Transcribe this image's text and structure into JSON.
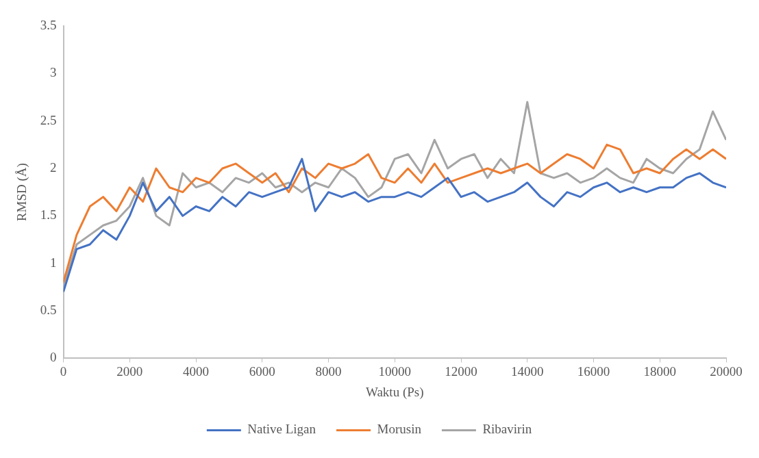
{
  "chart_data": {
    "type": "line",
    "xlabel": "Waktu (Ps)",
    "ylabel": "RMSD (Å)",
    "x": [
      0,
      400,
      800,
      1200,
      1600,
      2000,
      2400,
      2800,
      3200,
      3600,
      4000,
      4400,
      4800,
      5200,
      5600,
      6000,
      6400,
      6800,
      7200,
      7600,
      8000,
      8400,
      8800,
      9200,
      9600,
      10000,
      10400,
      10800,
      11200,
      11600,
      12000,
      12400,
      12800,
      13200,
      13600,
      14000,
      14400,
      14800,
      15200,
      15600,
      16000,
      16400,
      16800,
      17200,
      17600,
      18000,
      18400,
      18800,
      19200,
      19600,
      20000
    ],
    "series": [
      {
        "name": "Native Ligan",
        "color": "#4472c4",
        "values": [
          0.7,
          1.15,
          1.2,
          1.35,
          1.25,
          1.5,
          1.85,
          1.55,
          1.7,
          1.5,
          1.6,
          1.55,
          1.7,
          1.6,
          1.75,
          1.7,
          1.75,
          1.8,
          2.1,
          1.55,
          1.75,
          1.7,
          1.75,
          1.65,
          1.7,
          1.7,
          1.75,
          1.7,
          1.8,
          1.9,
          1.7,
          1.75,
          1.65,
          1.7,
          1.75,
          1.85,
          1.7,
          1.6,
          1.75,
          1.7,
          1.8,
          1.85,
          1.75,
          1.8,
          1.75,
          1.8,
          1.8,
          1.9,
          1.95,
          1.85,
          1.8
        ]
      },
      {
        "name": "Morusin",
        "color": "#ed7d31",
        "values": [
          0.8,
          1.3,
          1.6,
          1.7,
          1.55,
          1.8,
          1.65,
          2.0,
          1.8,
          1.75,
          1.9,
          1.85,
          2.0,
          2.05,
          1.95,
          1.85,
          1.95,
          1.75,
          2.0,
          1.9,
          2.05,
          2.0,
          2.05,
          2.15,
          1.9,
          1.85,
          2.0,
          1.85,
          2.05,
          1.85,
          1.9,
          1.95,
          2.0,
          1.95,
          2.0,
          2.05,
          1.95,
          2.05,
          2.15,
          2.1,
          2.0,
          2.25,
          2.2,
          1.95,
          2.0,
          1.95,
          2.1,
          2.2,
          2.1,
          2.2,
          2.1
        ]
      },
      {
        "name": "Ribavirin",
        "color": "#a5a5a5",
        "values": [
          0.75,
          1.2,
          1.3,
          1.4,
          1.45,
          1.6,
          1.9,
          1.5,
          1.4,
          1.95,
          1.8,
          1.85,
          1.75,
          1.9,
          1.85,
          1.95,
          1.8,
          1.85,
          1.75,
          1.85,
          1.8,
          2.0,
          1.9,
          1.7,
          1.8,
          2.1,
          2.15,
          1.95,
          2.3,
          2.0,
          2.1,
          2.15,
          1.9,
          2.1,
          1.95,
          2.7,
          1.95,
          1.9,
          1.95,
          1.85,
          1.9,
          2.0,
          1.9,
          1.85,
          2.1,
          2.0,
          1.95,
          2.1,
          2.2,
          2.6,
          2.3
        ]
      }
    ],
    "xlim": [
      0,
      20000
    ],
    "xticks": [
      0,
      2000,
      4000,
      6000,
      8000,
      10000,
      12000,
      14000,
      16000,
      18000,
      20000
    ],
    "ylim": [
      0,
      3.5
    ],
    "yticks": [
      0,
      0.5,
      1,
      1.5,
      2,
      2.5,
      3,
      3.5
    ],
    "grid": false,
    "legend": "bottom",
    "marker": "none",
    "line_style": "solid"
  }
}
